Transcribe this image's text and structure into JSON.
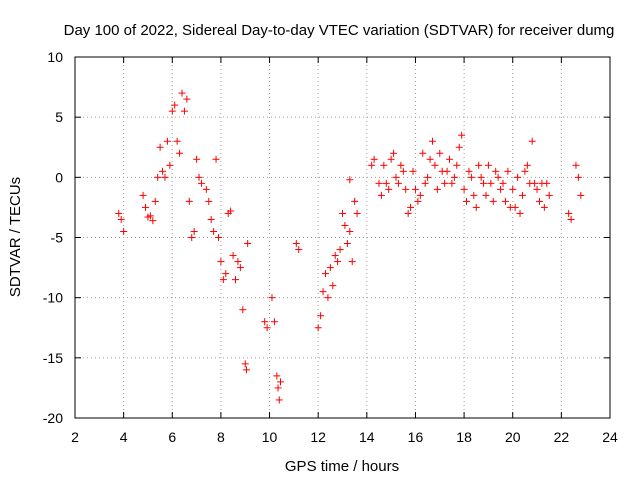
{
  "chart_data": {
    "type": "scatter",
    "title": "Day 100 of 2022, Sidereal Day-to-day VTEC variation (SDTVAR) for receiver dumg",
    "xlabel": "GPS time / hours",
    "ylabel": "SDTVAR / TECUs",
    "xlim": [
      2,
      24
    ],
    "ylim": [
      -20,
      10
    ],
    "xticks": [
      "2",
      "4",
      "6",
      "8",
      "10",
      "12",
      "14",
      "16",
      "18",
      "20",
      "22",
      "24"
    ],
    "yticks": [
      "10",
      "5",
      "0",
      "-5",
      "-10",
      "-15",
      "-20"
    ],
    "grid": true,
    "marker": "+",
    "series_color": "#ff0000",
    "segments": [
      [
        3.8,
        -3.0
      ],
      [
        3.9,
        -3.5
      ],
      [
        4.0,
        -4.5
      ],
      [
        4.8,
        -1.5
      ],
      [
        4.9,
        -2.5
      ],
      [
        5.0,
        -3.3
      ],
      [
        5.1,
        -3.2
      ],
      [
        5.2,
        -3.6
      ],
      [
        5.3,
        -2.0
      ],
      [
        5.4,
        0.0
      ],
      [
        5.5,
        2.5
      ],
      [
        5.6,
        0.5
      ],
      [
        5.7,
        0.0
      ],
      [
        5.8,
        3.0
      ],
      [
        5.9,
        1.0
      ],
      [
        6.0,
        5.5
      ],
      [
        6.1,
        6.0
      ],
      [
        6.2,
        3.0
      ],
      [
        6.3,
        2.0
      ],
      [
        6.4,
        7.0
      ],
      [
        6.5,
        5.5
      ],
      [
        6.6,
        6.5
      ],
      [
        6.7,
        -2.0
      ],
      [
        6.8,
        -5.0
      ],
      [
        6.9,
        -4.5
      ],
      [
        7.0,
        1.5
      ],
      [
        7.1,
        0.0
      ],
      [
        7.2,
        -0.5
      ],
      [
        7.4,
        -1.0
      ],
      [
        7.5,
        -2.0
      ],
      [
        7.6,
        -3.5
      ],
      [
        7.7,
        -4.5
      ],
      [
        7.8,
        1.5
      ],
      [
        7.9,
        -5.0
      ],
      [
        8.0,
        -7.0
      ],
      [
        8.1,
        -8.5
      ],
      [
        8.2,
        -8.0
      ],
      [
        8.3,
        -3.0
      ],
      [
        8.4,
        -2.8
      ],
      [
        8.5,
        -6.5
      ],
      [
        8.6,
        -8.5
      ],
      [
        8.7,
        -7.0
      ],
      [
        8.8,
        -7.5
      ],
      [
        8.9,
        -11.0
      ],
      [
        9.0,
        -15.5
      ],
      [
        9.05,
        -16.0
      ],
      [
        9.1,
        -5.5
      ],
      [
        9.8,
        -12.0
      ],
      [
        9.9,
        -12.5
      ],
      [
        10.1,
        -10.0
      ],
      [
        10.2,
        -12.0
      ],
      [
        10.3,
        -16.5
      ],
      [
        10.35,
        -17.5
      ],
      [
        10.4,
        -18.5
      ],
      [
        10.45,
        -17.0
      ],
      [
        11.1,
        -5.5
      ],
      [
        11.2,
        -6.0
      ],
      [
        12.0,
        -12.5
      ],
      [
        12.1,
        -11.5
      ],
      [
        12.2,
        -9.5
      ],
      [
        12.3,
        -8.0
      ],
      [
        12.4,
        -10.0
      ],
      [
        12.5,
        -7.5
      ],
      [
        12.6,
        -9.0
      ],
      [
        12.7,
        -6.5
      ],
      [
        12.8,
        -7.0
      ],
      [
        12.9,
        -6.0
      ],
      [
        13.0,
        -3.0
      ],
      [
        13.1,
        -4.0
      ],
      [
        13.2,
        -5.5
      ],
      [
        13.3,
        -4.5
      ],
      [
        13.4,
        -7.0
      ],
      [
        13.5,
        -2.0
      ],
      [
        13.6,
        -3.0
      ],
      [
        13.3,
        -0.2
      ],
      [
        14.2,
        1.0
      ],
      [
        14.3,
        1.5
      ],
      [
        14.5,
        -0.5
      ],
      [
        14.6,
        -1.5
      ],
      [
        14.7,
        1.0
      ],
      [
        14.8,
        -0.5
      ],
      [
        14.9,
        -1.0
      ],
      [
        15.0,
        1.5
      ],
      [
        15.1,
        2.0
      ],
      [
        15.2,
        0.0
      ],
      [
        15.3,
        -0.5
      ],
      [
        15.4,
        1.0
      ],
      [
        15.5,
        0.5
      ],
      [
        15.6,
        -1.0
      ],
      [
        15.7,
        -3.0
      ],
      [
        15.8,
        -2.5
      ],
      [
        15.9,
        0.5
      ],
      [
        16.0,
        -1.0
      ],
      [
        16.1,
        -2.0
      ],
      [
        16.2,
        -1.5
      ],
      [
        16.3,
        2.0
      ],
      [
        16.4,
        -0.5
      ],
      [
        16.5,
        0.0
      ],
      [
        16.6,
        1.5
      ],
      [
        16.7,
        3.0
      ],
      [
        16.8,
        1.0
      ],
      [
        16.9,
        -1.0
      ],
      [
        17.0,
        2.0
      ],
      [
        17.1,
        0.5
      ],
      [
        17.2,
        -0.5
      ],
      [
        17.3,
        0.5
      ],
      [
        17.4,
        1.5
      ],
      [
        17.5,
        -0.5
      ],
      [
        17.6,
        0.0
      ],
      [
        17.7,
        1.0
      ],
      [
        17.8,
        2.5
      ],
      [
        17.9,
        3.5
      ],
      [
        18.0,
        -1.0
      ],
      [
        18.1,
        -2.0
      ],
      [
        18.2,
        0.5
      ],
      [
        18.3,
        0.0
      ],
      [
        18.4,
        -1.5
      ],
      [
        18.5,
        -2.5
      ],
      [
        18.6,
        1.0
      ],
      [
        18.7,
        0.0
      ],
      [
        18.8,
        -0.5
      ],
      [
        18.9,
        -1.5
      ],
      [
        19.0,
        1.0
      ],
      [
        19.1,
        -0.5
      ],
      [
        19.2,
        -2.0
      ],
      [
        19.3,
        0.5
      ],
      [
        19.4,
        0.0
      ],
      [
        19.5,
        -1.0
      ],
      [
        19.6,
        -0.5
      ],
      [
        19.7,
        -2.0
      ],
      [
        19.8,
        0.5
      ],
      [
        19.9,
        -2.5
      ],
      [
        20.0,
        -1.0
      ],
      [
        20.1,
        -2.5
      ],
      [
        20.2,
        0.0
      ],
      [
        20.3,
        -3.0
      ],
      [
        20.4,
        -1.5
      ],
      [
        20.5,
        0.5
      ],
      [
        20.6,
        1.0
      ],
      [
        20.7,
        -0.5
      ],
      [
        20.8,
        3.0
      ],
      [
        20.9,
        -0.5
      ],
      [
        21.0,
        -1.0
      ],
      [
        21.1,
        -2.0
      ],
      [
        21.2,
        -0.5
      ],
      [
        21.3,
        -2.5
      ],
      [
        21.4,
        -0.5
      ],
      [
        21.5,
        -1.5
      ],
      [
        22.3,
        -3.0
      ],
      [
        22.4,
        -3.5
      ],
      [
        22.6,
        1.0
      ],
      [
        22.7,
        0.0
      ],
      [
        22.8,
        -1.5
      ]
    ]
  }
}
